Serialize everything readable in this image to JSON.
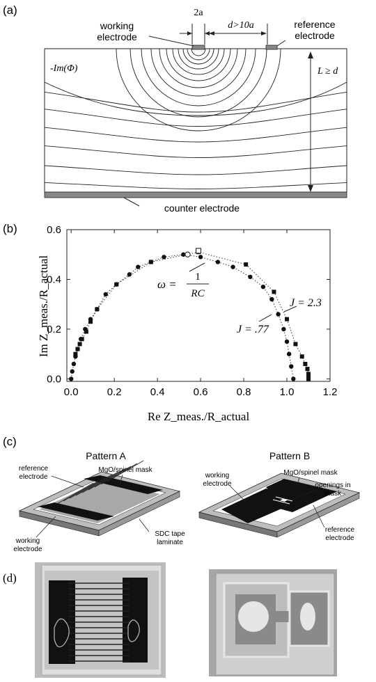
{
  "panel_a": {
    "label": "(a)",
    "working_electrode_line1": "working",
    "working_electrode_line2": "electrode",
    "reference_electrode_line1": "reference",
    "reference_electrode_line2": "electrode",
    "width_label": "2a",
    "distance_label": "d>10a",
    "potential_label": "-Im(Φ)",
    "thickness_label": "L ≥ d",
    "counter_electrode": "counter electrode"
  },
  "panel_b": {
    "label": "(b)",
    "omega_lhs": "ω =",
    "omega_num": "1",
    "omega_den": "RC",
    "j_high": "J = 2.3",
    "j_low": "J = .77"
  },
  "chart_data": {
    "type": "scatter",
    "xlabel": "Re Z_meas./R_actual",
    "ylabel": "Im Z_meas./R_actual",
    "xlim": [
      -0.02,
      1.2
    ],
    "ylim": [
      -0.01,
      0.6
    ],
    "xticks": [
      "0.0",
      "0.2",
      "0.4",
      "0.6",
      "0.8",
      "1.0",
      "1.2"
    ],
    "yticks": [
      "0.0",
      "0.2",
      "0.4",
      "0.6"
    ],
    "series": [
      {
        "name": "J = .77",
        "marker": "circle",
        "x": [
          0.0,
          0.005,
          0.012,
          0.02,
          0.03,
          0.045,
          0.065,
          0.09,
          0.12,
          0.16,
          0.21,
          0.27,
          0.31,
          0.37,
          0.43,
          0.52,
          0.6,
          0.68,
          0.75,
          0.83,
          0.89,
          0.93,
          0.96,
          0.985,
          1.0,
          1.01,
          1.02,
          1.03
        ],
        "y": [
          0.0,
          0.03,
          0.06,
          0.09,
          0.12,
          0.16,
          0.2,
          0.24,
          0.28,
          0.34,
          0.38,
          0.42,
          0.45,
          0.47,
          0.49,
          0.5,
          0.49,
          0.47,
          0.45,
          0.41,
          0.37,
          0.32,
          0.26,
          0.2,
          0.15,
          0.1,
          0.05,
          0.0
        ]
      },
      {
        "name": "J = 2.3",
        "marker": "square",
        "x": [
          0.02,
          0.03,
          0.04,
          0.05,
          0.07,
          0.09,
          0.12,
          0.21,
          0.37,
          0.59,
          0.81,
          0.94,
          1.0,
          1.04,
          1.07,
          1.085,
          1.095,
          1.1,
          1.1,
          1.1
        ],
        "y": [
          0.1,
          0.12,
          0.14,
          0.16,
          0.19,
          0.23,
          0.28,
          0.38,
          0.47,
          0.51,
          0.46,
          0.35,
          0.24,
          0.14,
          0.09,
          0.06,
          0.04,
          0.02,
          0.01,
          0.0
        ]
      }
    ],
    "highlight": [
      {
        "marker": "open-circle",
        "x": 0.54,
        "y": 0.5
      },
      {
        "marker": "open-square",
        "x": 0.59,
        "y": 0.515
      }
    ]
  },
  "panel_c": {
    "label": "(c)",
    "pattern_a": "Pattern A",
    "pattern_b": "Pattern B",
    "a_reference_line1": "reference",
    "a_reference_line2": "electrode",
    "a_mask": "MgO/spinel mask",
    "a_working_line1": "working",
    "a_working_line2": "electrode",
    "sdc_line1": "SDC tape",
    "sdc_line2": "laminate",
    "b_working_line1": "working",
    "b_working_line2": "electrode",
    "b_mask": "MgO/spinel mask",
    "b_openings_line1": "openings in",
    "b_openings_line2": "mask",
    "b_reference_line1": "reference",
    "b_reference_line2": "electrode"
  },
  "panel_d": {
    "label": "(d)"
  }
}
